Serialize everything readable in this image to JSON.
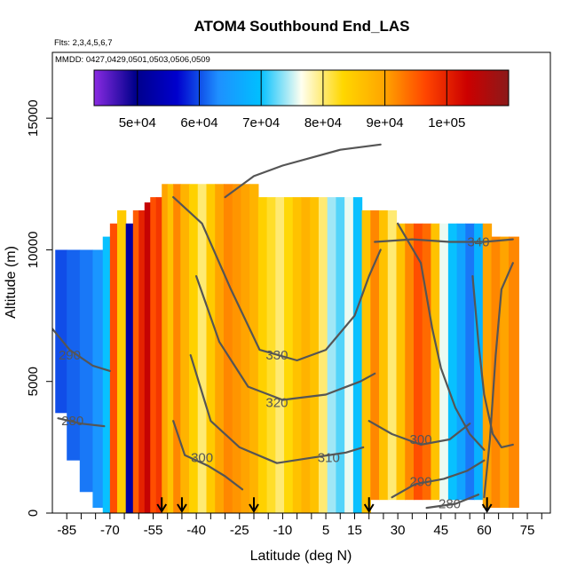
{
  "chart_data": {
    "type": "heatmap",
    "title": "ATOM4 Southbound End_LAS",
    "flights_text": "Flts: 2,3,4,5,6,7",
    "mmdd_text": "MMDD: 0427,0429,0501,0503,0506,0509",
    "xlabel": "Latitude (deg N)",
    "ylabel": "Altitude (m)",
    "xlim": [
      -90,
      83
    ],
    "ylim": [
      0,
      17500
    ],
    "xticks": [
      -85,
      -80,
      -75,
      -70,
      -65,
      -60,
      -55,
      -50,
      -45,
      -40,
      -35,
      -30,
      -25,
      -20,
      -15,
      -10,
      -5,
      0,
      5,
      10,
      15,
      20,
      25,
      30,
      35,
      40,
      45,
      50,
      55,
      60,
      65,
      70,
      75,
      80
    ],
    "xtick_labels": [
      {
        "value": -85,
        "label": "-85"
      },
      {
        "value": -70,
        "label": "-70"
      },
      {
        "value": -55,
        "label": "-55"
      },
      {
        "value": -40,
        "label": "-40"
      },
      {
        "value": -25,
        "label": "-25"
      },
      {
        "value": -10,
        "label": "-10"
      },
      {
        "value": 5,
        "label": "5"
      },
      {
        "value": 15,
        "label": "15"
      },
      {
        "value": 30,
        "label": "30"
      },
      {
        "value": 45,
        "label": "45"
      },
      {
        "value": 60,
        "label": "60"
      },
      {
        "value": 75,
        "label": "75"
      }
    ],
    "yticks": [
      {
        "value": 0,
        "label": "0"
      },
      {
        "value": 5000,
        "label": "5000"
      },
      {
        "value": 10000,
        "label": "10000"
      },
      {
        "value": 15000,
        "label": "15000"
      }
    ],
    "colorbar": {
      "range": [
        43000,
        110000
      ],
      "ticks": [
        {
          "value": 50000,
          "label": "5e+04"
        },
        {
          "value": 60000,
          "label": "6e+04"
        },
        {
          "value": 70000,
          "label": "7e+04"
        },
        {
          "value": 80000,
          "label": "8e+04"
        },
        {
          "value": 90000,
          "label": "9e+04"
        },
        {
          "value": 100000,
          "label": "1e+05"
        }
      ],
      "colors": [
        "#8a2be2",
        "#00008b",
        "#0000cd",
        "#1e90ff",
        "#00bfff",
        "#fffff0",
        "#ffd700",
        "#ffa500",
        "#ff4500",
        "#cc0000",
        "#8b1a1a"
      ]
    },
    "arrows_lat": [
      -52,
      -45,
      -20,
      20,
      61
    ],
    "columns": [
      {
        "lat": -87,
        "bottom": 3800,
        "top": 10000,
        "value": 60000
      },
      {
        "lat": -83,
        "bottom": 2000,
        "top": 10000,
        "value": 61000
      },
      {
        "lat": -78,
        "bottom": 800,
        "top": 10000,
        "value": 62000
      },
      {
        "lat": -74,
        "bottom": 200,
        "top": 10000,
        "value": 64000
      },
      {
        "lat": -71,
        "bottom": 0,
        "top": 10500,
        "value": 70000
      },
      {
        "lat": -69,
        "bottom": 0,
        "top": 11000,
        "value": 96000
      },
      {
        "lat": -66,
        "bottom": 0,
        "top": 11500,
        "value": 85000
      },
      {
        "lat": -63,
        "bottom": 0,
        "top": 11000,
        "value": 52000
      },
      {
        "lat": -61,
        "bottom": 0,
        "top": 11500,
        "value": 95000
      },
      {
        "lat": -59,
        "bottom": 0,
        "top": 11500,
        "value": 100000
      },
      {
        "lat": -57,
        "bottom": 0,
        "top": 11800,
        "value": 104000
      },
      {
        "lat": -55,
        "bottom": 0,
        "top": 12000,
        "value": 96000
      },
      {
        "lat": -53,
        "bottom": 0,
        "top": 12000,
        "value": 98000
      },
      {
        "lat": -51,
        "bottom": 0,
        "top": 12500,
        "value": 90000
      },
      {
        "lat": -49,
        "bottom": 0,
        "top": 12500,
        "value": 86000
      },
      {
        "lat": -47,
        "bottom": 0,
        "top": 12500,
        "value": 92000
      },
      {
        "lat": -44,
        "bottom": 0,
        "top": 12500,
        "value": 88000
      },
      {
        "lat": -41,
        "bottom": 0,
        "top": 12500,
        "value": 84000
      },
      {
        "lat": -38,
        "bottom": 0,
        "top": 12500,
        "value": 80000
      },
      {
        "lat": -35,
        "bottom": 0,
        "top": 12500,
        "value": 85000
      },
      {
        "lat": -32,
        "bottom": 0,
        "top": 12500,
        "value": 90000
      },
      {
        "lat": -29,
        "bottom": 0,
        "top": 12500,
        "value": 92000
      },
      {
        "lat": -26,
        "bottom": 0,
        "top": 12500,
        "value": 91000
      },
      {
        "lat": -23,
        "bottom": 0,
        "top": 12500,
        "value": 90000
      },
      {
        "lat": -20,
        "bottom": 0,
        "top": 12500,
        "value": 88000
      },
      {
        "lat": -17,
        "bottom": 0,
        "top": 12000,
        "value": 84000
      },
      {
        "lat": -14,
        "bottom": 0,
        "top": 12000,
        "value": 82000
      },
      {
        "lat": -11,
        "bottom": 0,
        "top": 12000,
        "value": 80000
      },
      {
        "lat": -8,
        "bottom": 0,
        "top": 12000,
        "value": 83000
      },
      {
        "lat": -5,
        "bottom": 0,
        "top": 12000,
        "value": 86000
      },
      {
        "lat": -2,
        "bottom": 0,
        "top": 12000,
        "value": 88000
      },
      {
        "lat": 1,
        "bottom": 0,
        "top": 12000,
        "value": 86000
      },
      {
        "lat": 4,
        "bottom": 0,
        "top": 12000,
        "value": 80000
      },
      {
        "lat": 7,
        "bottom": 0,
        "top": 12000,
        "value": 74000
      },
      {
        "lat": 10,
        "bottom": 0,
        "top": 12000,
        "value": 72000
      },
      {
        "lat": 13,
        "bottom": 0,
        "top": 12000,
        "value": 76000
      },
      {
        "lat": 16,
        "bottom": 0,
        "top": 12000,
        "value": 70000
      },
      {
        "lat": 19,
        "bottom": 0,
        "top": 11500,
        "value": 86000
      },
      {
        "lat": 22,
        "bottom": 500,
        "top": 11500,
        "value": 92000
      },
      {
        "lat": 25,
        "bottom": 500,
        "top": 11500,
        "value": 86000
      },
      {
        "lat": 28,
        "bottom": 500,
        "top": 11500,
        "value": 80000
      },
      {
        "lat": 31,
        "bottom": 500,
        "top": 11000,
        "value": 86000
      },
      {
        "lat": 34,
        "bottom": 500,
        "top": 11000,
        "value": 92000
      },
      {
        "lat": 37,
        "bottom": 500,
        "top": 11000,
        "value": 96000
      },
      {
        "lat": 40,
        "bottom": 500,
        "top": 11000,
        "value": 94000
      },
      {
        "lat": 43,
        "bottom": 500,
        "top": 11000,
        "value": 86000
      },
      {
        "lat": 46,
        "bottom": 500,
        "top": 11000,
        "value": 76000
      },
      {
        "lat": 49,
        "bottom": 500,
        "top": 11000,
        "value": 70000
      },
      {
        "lat": 52,
        "bottom": 500,
        "top": 11000,
        "value": 66000
      },
      {
        "lat": 55,
        "bottom": 500,
        "top": 11000,
        "value": 62000
      },
      {
        "lat": 58,
        "bottom": 500,
        "top": 11000,
        "value": 68000
      },
      {
        "lat": 61,
        "bottom": 200,
        "top": 11000,
        "value": 90000
      },
      {
        "lat": 64,
        "bottom": 200,
        "top": 10500,
        "value": 92000
      },
      {
        "lat": 67,
        "bottom": 200,
        "top": 10500,
        "value": 90000
      },
      {
        "lat": 70,
        "bottom": 200,
        "top": 10500,
        "value": 92000
      }
    ],
    "contours": [
      {
        "label": "340",
        "label_at": [
          58,
          10300
        ],
        "points": [
          [
            22,
            10300
          ],
          [
            35,
            10400
          ],
          [
            48,
            10300
          ],
          [
            60,
            10300
          ],
          [
            70,
            10400
          ]
        ]
      },
      {
        "label": "330",
        "label_at": [
          -12,
          6000
        ],
        "points": [
          [
            -48,
            12000
          ],
          [
            -38,
            11000
          ],
          [
            -28,
            8500
          ],
          [
            -18,
            6200
          ],
          [
            -5,
            5800
          ],
          [
            5,
            6200
          ],
          [
            15,
            7500
          ],
          [
            20,
            9000
          ],
          [
            24,
            10000
          ]
        ]
      },
      {
        "label": "320",
        "label_at": [
          -12,
          4200
        ],
        "points": [
          [
            -40,
            9000
          ],
          [
            -32,
            6500
          ],
          [
            -22,
            4800
          ],
          [
            -10,
            4300
          ],
          [
            5,
            4500
          ],
          [
            17,
            5000
          ],
          [
            22,
            5300
          ]
        ]
      },
      {
        "label": "310",
        "label_at": [
          6,
          2100
        ],
        "points": [
          [
            -42,
            6000
          ],
          [
            -35,
            3500
          ],
          [
            -25,
            2500
          ],
          [
            -12,
            1900
          ],
          [
            0,
            2100
          ],
          [
            12,
            2300
          ],
          [
            18,
            2500
          ]
        ]
      },
      {
        "label": "300",
        "label_at": [
          -38,
          2100
        ],
        "points": [
          [
            -48,
            3500
          ],
          [
            -44,
            2200
          ],
          [
            -36,
            1800
          ],
          [
            -30,
            1400
          ],
          [
            -24,
            900
          ]
        ]
      },
      {
        "label": "300",
        "label_at": [
          38,
          2800
        ],
        "points": [
          [
            20,
            3500
          ],
          [
            28,
            3000
          ],
          [
            38,
            2600
          ],
          [
            48,
            2800
          ],
          [
            55,
            3400
          ]
        ]
      },
      {
        "label": "290",
        "label_at": [
          38,
          1200
        ],
        "points": [
          [
            28,
            600
          ],
          [
            36,
            1100
          ],
          [
            46,
            1300
          ],
          [
            54,
            1600
          ],
          [
            60,
            2000
          ]
        ]
      },
      {
        "label": "280",
        "label_at": [
          48,
          350
        ],
        "points": [
          [
            40,
            200
          ],
          [
            50,
            350
          ],
          [
            58,
            700
          ]
        ]
      },
      {
        "label": "290",
        "label_at": [
          -84,
          6000
        ],
        "points": [
          [
            -90,
            7000
          ],
          [
            -84,
            6200
          ],
          [
            -76,
            5600
          ],
          [
            -70,
            5400
          ]
        ]
      },
      {
        "label": "280",
        "label_at": [
          -83,
          3500
        ],
        "points": [
          [
            -88,
            3600
          ],
          [
            -80,
            3400
          ],
          [
            -72,
            3300
          ]
        ]
      },
      {
        "label": "",
        "points": [
          [
            -30,
            12000
          ],
          [
            -20,
            12800
          ],
          [
            -10,
            13200
          ],
          [
            10,
            13800
          ],
          [
            24,
            14000
          ]
        ]
      },
      {
        "label": "",
        "points": [
          [
            30,
            11000
          ],
          [
            38,
            9500
          ],
          [
            42,
            7000
          ],
          [
            45,
            5500
          ],
          [
            50,
            4000
          ],
          [
            55,
            3000
          ],
          [
            60,
            2400
          ]
        ]
      },
      {
        "label": "",
        "points": [
          [
            56,
            9000
          ],
          [
            58,
            6500
          ],
          [
            60,
            4500
          ],
          [
            63,
            3000
          ],
          [
            66,
            2500
          ],
          [
            70,
            2600
          ]
        ]
      },
      {
        "label": "",
        "points": [
          [
            60,
            600
          ],
          [
            62,
            2800
          ],
          [
            64,
            6000
          ],
          [
            66,
            8500
          ],
          [
            70,
            9500
          ]
        ]
      }
    ]
  }
}
